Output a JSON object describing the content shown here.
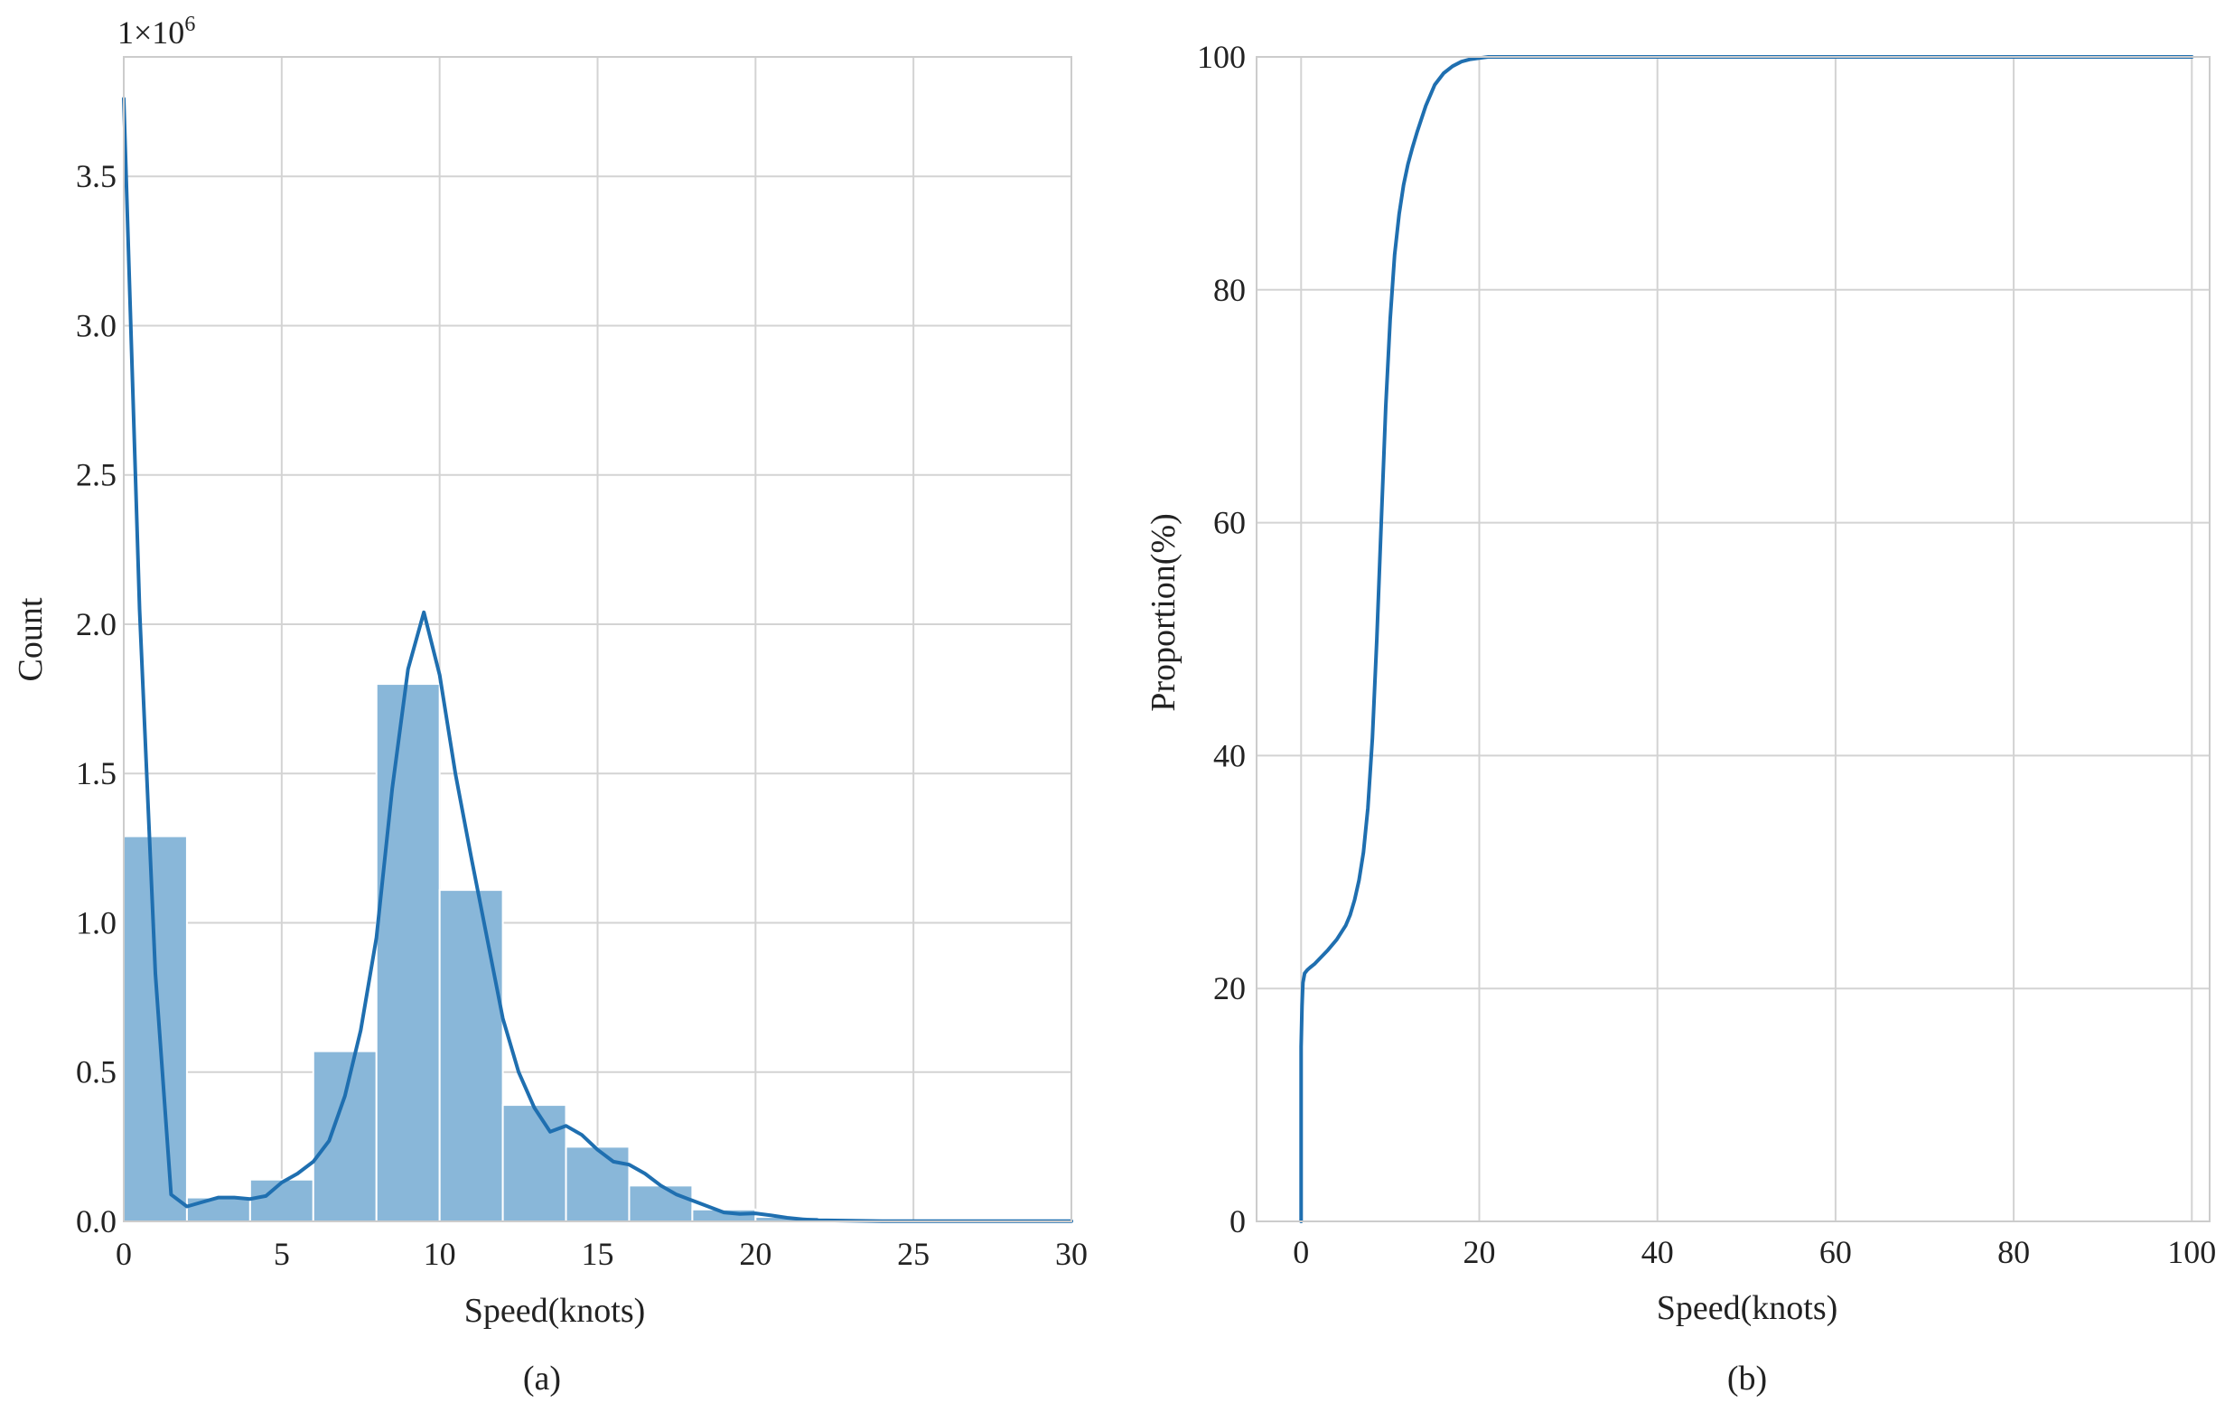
{
  "chart_data": [
    {
      "type": "bar",
      "panel_caption": "(a)",
      "xlabel": "Speed(knots)",
      "ylabel": "Count",
      "y_multiplier_label": "1×10",
      "y_multiplier_exponent": "6",
      "xlim": [
        0,
        30
      ],
      "ylim": [
        0,
        3.9
      ],
      "x_ticks": [
        0,
        5,
        10,
        15,
        20,
        25,
        30
      ],
      "x_tick_labels": [
        "0",
        "5",
        "10",
        "15",
        "20",
        "25",
        "30"
      ],
      "y_ticks": [
        0,
        0.5,
        1.0,
        1.5,
        2.0,
        2.5,
        3.0,
        3.5
      ],
      "y_tick_labels": [
        "0.0",
        "0.5",
        "1.0",
        "1.5",
        "2.0",
        "2.5",
        "3.0",
        "3.5"
      ],
      "grid": true,
      "bar_color": "#89b7d9",
      "line_color": "#1f6fb0",
      "bins": [
        {
          "x0": 0,
          "x1": 2,
          "value": 1.29
        },
        {
          "x0": 2,
          "x1": 4,
          "value": 0.08
        },
        {
          "x0": 4,
          "x1": 6,
          "value": 0.14
        },
        {
          "x0": 6,
          "x1": 8,
          "value": 0.57
        },
        {
          "x0": 8,
          "x1": 10,
          "value": 1.8
        },
        {
          "x0": 10,
          "x1": 12,
          "value": 1.11
        },
        {
          "x0": 12,
          "x1": 14,
          "value": 0.39
        },
        {
          "x0": 14,
          "x1": 16,
          "value": 0.25
        },
        {
          "x0": 16,
          "x1": 18,
          "value": 0.12
        },
        {
          "x0": 18,
          "x1": 20,
          "value": 0.04
        },
        {
          "x0": 20,
          "x1": 22,
          "value": 0.015
        },
        {
          "x0": 22,
          "x1": 24,
          "value": 0.005
        },
        {
          "x0": 24,
          "x1": 26,
          "value": 0.002
        },
        {
          "x0": 26,
          "x1": 28,
          "value": 0.001
        },
        {
          "x0": 28,
          "x1": 30,
          "value": 0.001
        }
      ],
      "kde_curve": {
        "x": [
          0,
          0.5,
          1.0,
          1.5,
          2.0,
          2.5,
          3.0,
          3.5,
          4.0,
          4.5,
          5.0,
          5.5,
          6.0,
          6.5,
          7.0,
          7.5,
          8.0,
          8.5,
          9.0,
          9.5,
          10.0,
          10.5,
          11.0,
          11.5,
          12.0,
          12.5,
          13.0,
          13.5,
          14.0,
          14.5,
          15.0,
          15.5,
          16.0,
          16.5,
          17.0,
          17.5,
          18.0,
          18.5,
          19.0,
          19.5,
          20.0,
          20.5,
          21.0,
          21.5,
          22.0,
          23.0,
          24.0,
          26.0,
          28.0,
          30.0
        ],
        "y": [
          3.76,
          2.05,
          0.83,
          0.09,
          0.05,
          0.065,
          0.08,
          0.08,
          0.075,
          0.085,
          0.13,
          0.16,
          0.2,
          0.27,
          0.42,
          0.64,
          0.95,
          1.45,
          1.85,
          2.04,
          1.83,
          1.5,
          1.22,
          0.95,
          0.68,
          0.5,
          0.38,
          0.3,
          0.32,
          0.29,
          0.24,
          0.2,
          0.19,
          0.16,
          0.12,
          0.09,
          0.07,
          0.05,
          0.03,
          0.025,
          0.027,
          0.02,
          0.012,
          0.007,
          0.004,
          0.002,
          0.001,
          0.001,
          0.001,
          0.001
        ]
      }
    },
    {
      "type": "line",
      "panel_caption": "(b)",
      "xlabel": "Speed(knots)",
      "ylabel": "Proportion(%)",
      "xlim": [
        -5,
        102
      ],
      "ylim": [
        0,
        100
      ],
      "x_ticks": [
        0,
        20,
        40,
        60,
        80,
        100
      ],
      "x_tick_labels": [
        "0",
        "20",
        "40",
        "60",
        "80",
        "100"
      ],
      "y_ticks": [
        0,
        20,
        40,
        60,
        80,
        100
      ],
      "y_tick_labels": [
        "0",
        "20",
        "40",
        "60",
        "80",
        "100"
      ],
      "grid": true,
      "line_color": "#1f6fb0",
      "series": [
        {
          "x": [
            0,
            0,
            0.1,
            0.2,
            0.4,
            0.7,
            1.0,
            1.5,
            2.0,
            3.0,
            4.0,
            5.0,
            5.5,
            6.0,
            6.5,
            7.0,
            7.5,
            8.0,
            8.5,
            9.0,
            9.5,
            10.0,
            10.5,
            11.0,
            11.5,
            12.0,
            12.5,
            13.0,
            14.0,
            15.0,
            16.0,
            17.0,
            18.0,
            19.0,
            20.0,
            21.0,
            30.0,
            50.0,
            70.0,
            90.0,
            100.0
          ],
          "y": [
            0,
            15,
            18.5,
            20.5,
            21.3,
            21.6,
            21.8,
            22.1,
            22.5,
            23.3,
            24.2,
            25.4,
            26.3,
            27.6,
            29.3,
            31.7,
            35.5,
            41.5,
            50.0,
            60.0,
            70.0,
            77.5,
            83.0,
            86.5,
            89.0,
            90.8,
            92.2,
            93.5,
            95.8,
            97.6,
            98.6,
            99.2,
            99.6,
            99.8,
            99.9,
            100,
            100,
            100,
            100,
            100,
            100
          ]
        }
      ]
    }
  ]
}
